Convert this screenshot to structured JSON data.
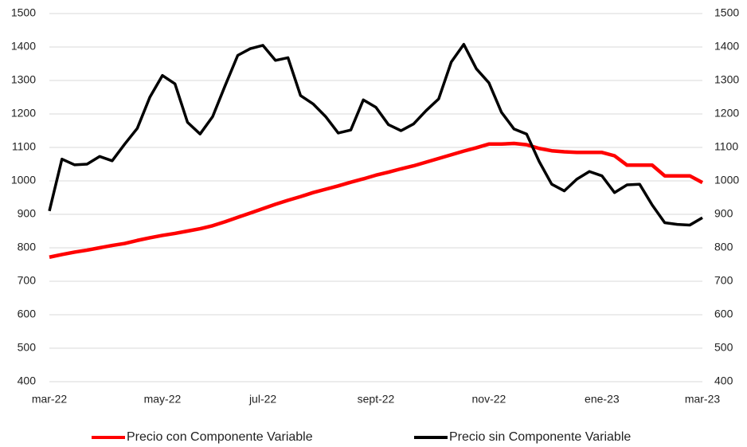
{
  "chart_data": {
    "type": "line",
    "categories": [
      "mar-22",
      null,
      null,
      null,
      null,
      null,
      null,
      null,
      null,
      "may-22",
      null,
      null,
      null,
      null,
      null,
      null,
      null,
      "jul-22",
      null,
      null,
      null,
      null,
      null,
      null,
      null,
      null,
      "sept-22",
      null,
      null,
      null,
      null,
      null,
      null,
      null,
      null,
      "nov-22",
      null,
      null,
      null,
      null,
      null,
      null,
      null,
      null,
      "ene-23",
      null,
      null,
      null,
      null,
      null,
      null,
      null,
      "mar-23"
    ],
    "series": [
      {
        "name": "Precio con Componente Variable",
        "color": "#ff0000",
        "axis": "y",
        "values": [
          772,
          780,
          787,
          793,
          800,
          807,
          813,
          822,
          830,
          837,
          843,
          850,
          857,
          866,
          878,
          891,
          904,
          917,
          930,
          942,
          953,
          965,
          975,
          985,
          996,
          1006,
          1017,
          1026,
          1036,
          1045,
          1056,
          1067,
          1078,
          1089,
          1099,
          1110,
          1110,
          1112,
          1108,
          1097,
          1090,
          1087,
          1085,
          1085,
          1085,
          1075,
          1047,
          1047,
          1047,
          1015,
          1015,
          1015,
          995
        ]
      },
      {
        "name": "Precio sin Componente Variable",
        "color": "#000000",
        "axis": "y2",
        "values": [
          910,
          1065,
          1048,
          1050,
          1073,
          1060,
          1110,
          1157,
          1250,
          1315,
          1290,
          1175,
          1140,
          1192,
          1285,
          1375,
          1395,
          1405,
          1360,
          1368,
          1255,
          1230,
          1192,
          1143,
          1152,
          1242,
          1220,
          1168,
          1150,
          1170,
          1210,
          1245,
          1355,
          1408,
          1335,
          1293,
          1205,
          1155,
          1140,
          1058,
          990,
          970,
          1005,
          1028,
          1015,
          965,
          988,
          990,
          928,
          875,
          870,
          868,
          890
        ]
      }
    ],
    "ylim": [
      400,
      1500
    ],
    "yticks": [
      400,
      500,
      600,
      700,
      800,
      900,
      1000,
      1100,
      1200,
      1300,
      1400,
      1500
    ],
    "y2lim": [
      400,
      1500
    ],
    "y2ticks": [
      400,
      500,
      600,
      700,
      800,
      900,
      1000,
      1100,
      1200,
      1300,
      1400,
      1500
    ],
    "grid": true,
    "legend": "bottom"
  }
}
